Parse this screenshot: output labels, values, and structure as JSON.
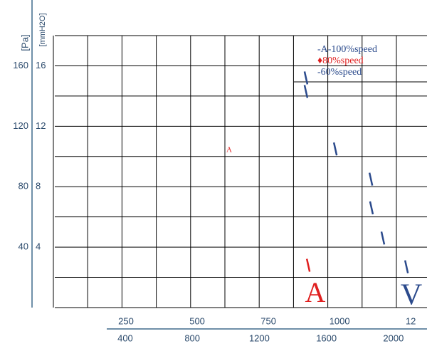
{
  "chart_data": {
    "type": "line",
    "y_label": "[Pa]",
    "y2_label": "[mmH2O]",
    "ylim": [
      0,
      180
    ],
    "yticks": [
      40,
      80,
      120,
      160
    ],
    "y2lim": [
      0,
      18
    ],
    "y2ticks": [
      4,
      8,
      12,
      16
    ],
    "xlim": [
      0,
      1307
    ],
    "xticks": [
      250,
      500,
      750,
      1000,
      {
        "value": 1250,
        "label": "12"
      }
    ],
    "x2lim": [
      -20,
      2200
    ],
    "x2ticks": [
      400,
      800,
      1200,
      1600,
      2000
    ],
    "grid": true,
    "annotations": [
      "A",
      "A",
      "V"
    ],
    "series": [
      {
        "name": "-A-100%speed",
        "color": "#2b4a8c",
        "x": [
          882,
          882,
          985,
          1110,
          1112,
          1152,
          1235
        ],
        "values": [
          152,
          143,
          105,
          85,
          66,
          46,
          27
        ]
      },
      {
        "name": "♦80%speed",
        "color": "#e02020",
        "x": [
          890
        ],
        "values": [
          28
        ]
      },
      {
        "name": "-60%speed",
        "color": "#2b4a8c",
        "x": [],
        "values": []
      }
    ]
  }
}
